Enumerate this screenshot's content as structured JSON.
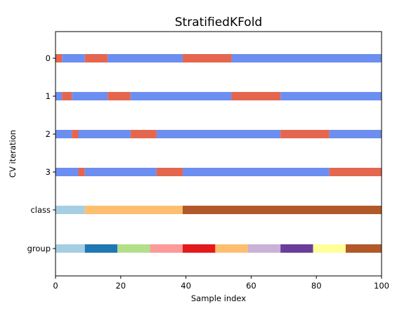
{
  "chart_data": {
    "type": "bar",
    "title": "StratifiedKFold",
    "xlabel": "Sample index",
    "ylabel": "CV iteration",
    "xlim": [
      0,
      100
    ],
    "x_ticks": [
      "0",
      "20",
      "40",
      "60",
      "80",
      "100"
    ],
    "x_tick_values": [
      0,
      20,
      40,
      60,
      80,
      100
    ],
    "grid": false,
    "legend": "none",
    "colors": {
      "train": "#6c8ef0",
      "test": "#e5664f"
    },
    "rows": [
      {
        "label": "0",
        "segments": [
          {
            "start": 0,
            "end": 2,
            "color": "#e5664f"
          },
          {
            "start": 2,
            "end": 9,
            "color": "#6c8ef0"
          },
          {
            "start": 9,
            "end": 16,
            "color": "#e5664f"
          },
          {
            "start": 16,
            "end": 39,
            "color": "#6c8ef0"
          },
          {
            "start": 39,
            "end": 54,
            "color": "#e5664f"
          },
          {
            "start": 54,
            "end": 100,
            "color": "#6c8ef0"
          }
        ]
      },
      {
        "label": "1",
        "segments": [
          {
            "start": 0,
            "end": 2,
            "color": "#6c8ef0"
          },
          {
            "start": 2,
            "end": 5,
            "color": "#e5664f"
          },
          {
            "start": 5,
            "end": 16,
            "color": "#6c8ef0"
          },
          {
            "start": 16,
            "end": 23,
            "color": "#e5664f"
          },
          {
            "start": 23,
            "end": 54,
            "color": "#6c8ef0"
          },
          {
            "start": 54,
            "end": 69,
            "color": "#e5664f"
          },
          {
            "start": 69,
            "end": 100,
            "color": "#6c8ef0"
          }
        ]
      },
      {
        "label": "2",
        "segments": [
          {
            "start": 0,
            "end": 5,
            "color": "#6c8ef0"
          },
          {
            "start": 5,
            "end": 7,
            "color": "#e5664f"
          },
          {
            "start": 7,
            "end": 23,
            "color": "#6c8ef0"
          },
          {
            "start": 23,
            "end": 31,
            "color": "#e5664f"
          },
          {
            "start": 31,
            "end": 69,
            "color": "#6c8ef0"
          },
          {
            "start": 69,
            "end": 84,
            "color": "#e5664f"
          },
          {
            "start": 84,
            "end": 100,
            "color": "#6c8ef0"
          }
        ]
      },
      {
        "label": "3",
        "segments": [
          {
            "start": 0,
            "end": 7,
            "color": "#6c8ef0"
          },
          {
            "start": 7,
            "end": 9,
            "color": "#e5664f"
          },
          {
            "start": 9,
            "end": 31,
            "color": "#6c8ef0"
          },
          {
            "start": 31,
            "end": 39,
            "color": "#e5664f"
          },
          {
            "start": 39,
            "end": 84,
            "color": "#6c8ef0"
          },
          {
            "start": 84,
            "end": 100,
            "color": "#e5664f"
          }
        ]
      },
      {
        "label": "class",
        "segments": [
          {
            "start": 0,
            "end": 9,
            "color": "#a6cee3"
          },
          {
            "start": 9,
            "end": 39,
            "color": "#fdbf6f"
          },
          {
            "start": 39,
            "end": 100,
            "color": "#b15928"
          }
        ]
      },
      {
        "label": "group",
        "segments": [
          {
            "start": 0,
            "end": 9,
            "color": "#a6cee3"
          },
          {
            "start": 9,
            "end": 19,
            "color": "#1f78b4"
          },
          {
            "start": 19,
            "end": 29,
            "color": "#b2df8a"
          },
          {
            "start": 29,
            "end": 39,
            "color": "#fb9a99"
          },
          {
            "start": 39,
            "end": 49,
            "color": "#e31a1c"
          },
          {
            "start": 49,
            "end": 59,
            "color": "#fdbf6f"
          },
          {
            "start": 59,
            "end": 69,
            "color": "#cab2d6"
          },
          {
            "start": 69,
            "end": 79,
            "color": "#6a3d9a"
          },
          {
            "start": 79,
            "end": 89,
            "color": "#ffff99"
          },
          {
            "start": 89,
            "end": 100,
            "color": "#b15928"
          }
        ]
      }
    ]
  }
}
